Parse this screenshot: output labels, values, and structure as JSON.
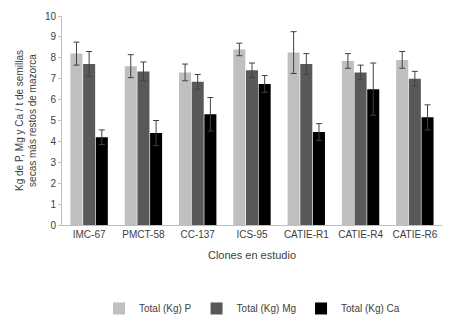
{
  "chart_data": {
    "type": "bar",
    "x_label": "Clones en estudio",
    "y_label": "Kg de P, Mg y Ca / t de semillas secas más restos de mazorca",
    "categories": [
      "IMC-67",
      "PMCT-58",
      "CC-137",
      "ICS-95",
      "CATIE-R1",
      "CATIE-R4",
      "CATIE-R6"
    ],
    "series": [
      {
        "name": "Total (Kg) P",
        "color": "#bfbfbf",
        "values": [
          8.2,
          7.6,
          7.3,
          8.4,
          8.25,
          7.85,
          7.9
        ],
        "errors": [
          0.55,
          0.55,
          0.4,
          0.3,
          1.0,
          0.35,
          0.4
        ]
      },
      {
        "name": "Total (Kg) Mg",
        "color": "#595959",
        "values": [
          7.7,
          7.35,
          6.85,
          7.4,
          7.7,
          7.3,
          7.0
        ],
        "errors": [
          0.6,
          0.45,
          0.35,
          0.35,
          0.5,
          0.35,
          0.35
        ]
      },
      {
        "name": "Total (Kg) Ca",
        "color": "#000000",
        "values": [
          4.2,
          4.4,
          5.3,
          6.75,
          4.45,
          6.5,
          5.15
        ],
        "errors": [
          0.35,
          0.6,
          0.8,
          0.4,
          0.4,
          1.25,
          0.6
        ]
      }
    ],
    "ylim": [
      0,
      10
    ],
    "yticks": [
      0,
      1,
      2,
      3,
      4,
      5,
      6,
      7,
      8,
      9,
      10
    ],
    "grid": false,
    "legend": "bottom"
  }
}
